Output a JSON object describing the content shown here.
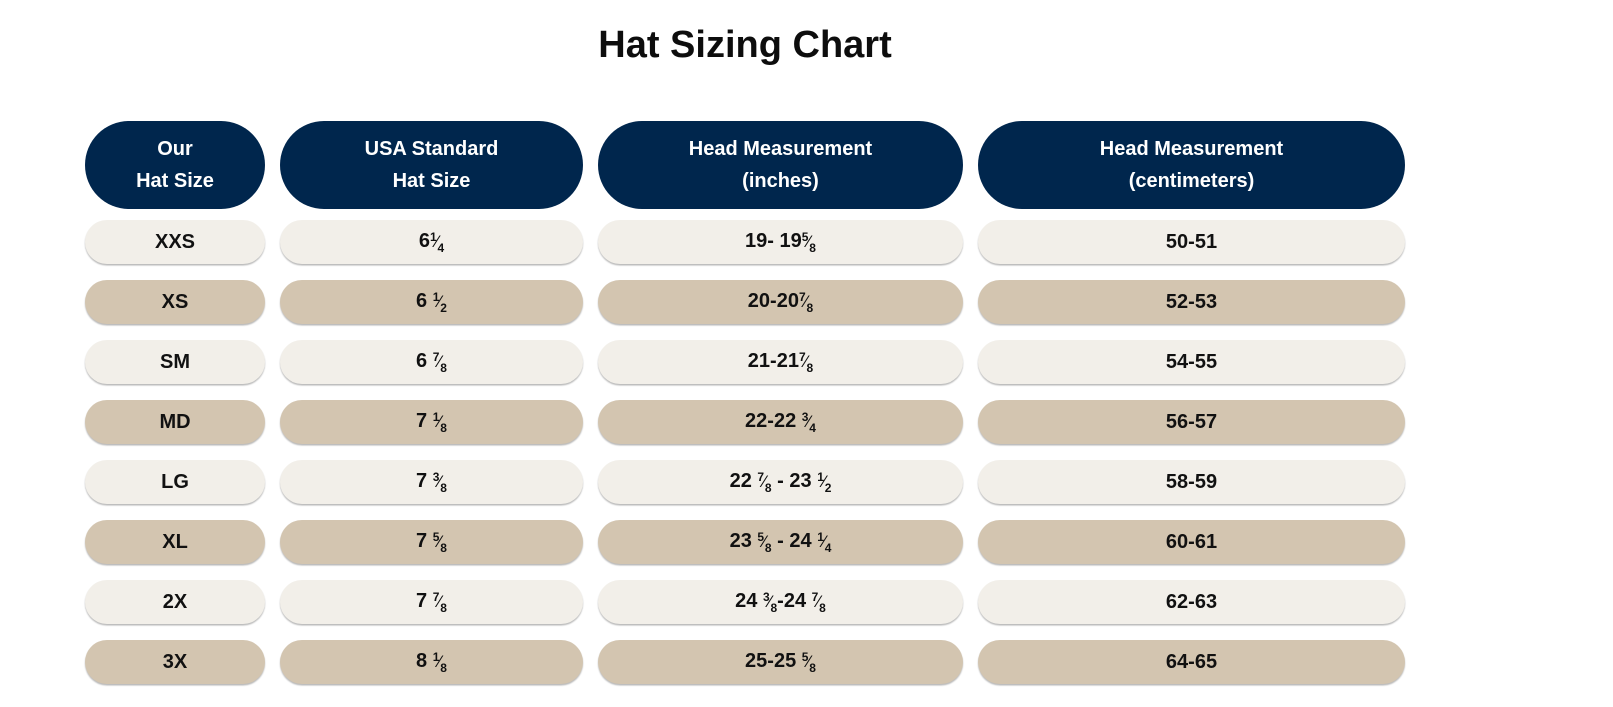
{
  "title": "Hat Sizing Chart",
  "colors": {
    "header_bg": "#00264d",
    "header_text": "#ffffff",
    "row_light": "#f2efe9",
    "row_dark": "#d3c5b0"
  },
  "headers": [
    {
      "line1": "Our",
      "line2": "Hat Size"
    },
    {
      "line1": "USA Standard",
      "line2": "Hat Size"
    },
    {
      "line1": "Head Measurement",
      "line2": "(inches)"
    },
    {
      "line1": "Head Measurement",
      "line2": "(centimeters)"
    }
  ],
  "rows": [
    {
      "our": "XXS",
      "usa": "6¼",
      "inches": "19- 19⅝",
      "cm": "50-51"
    },
    {
      "our": "XS",
      "usa": "6 ½",
      "inches": "20-20⅞",
      "cm": "52-53"
    },
    {
      "our": "SM",
      "usa": "6 ⅞",
      "inches": "21-21⅞",
      "cm": "54-55"
    },
    {
      "our": "MD",
      "usa": "7 ⅛",
      "inches": "22-22 ¾",
      "cm": "56-57"
    },
    {
      "our": "LG",
      "usa": "7 ⅜",
      "inches": "22 ⅞ - 23 ½",
      "cm": "58-59"
    },
    {
      "our": "XL",
      "usa": "7 ⅝",
      "inches": "23 ⅝ - 24 ¼",
      "cm": "60-61"
    },
    {
      "our": "2X",
      "usa": "7 ⅞",
      "inches": "24 ⅜-24 ⅞",
      "cm": "62-63"
    },
    {
      "our": "3X",
      "usa": "8 ⅛",
      "inches": "25-25 ⅝",
      "cm": "64-65"
    }
  ]
}
